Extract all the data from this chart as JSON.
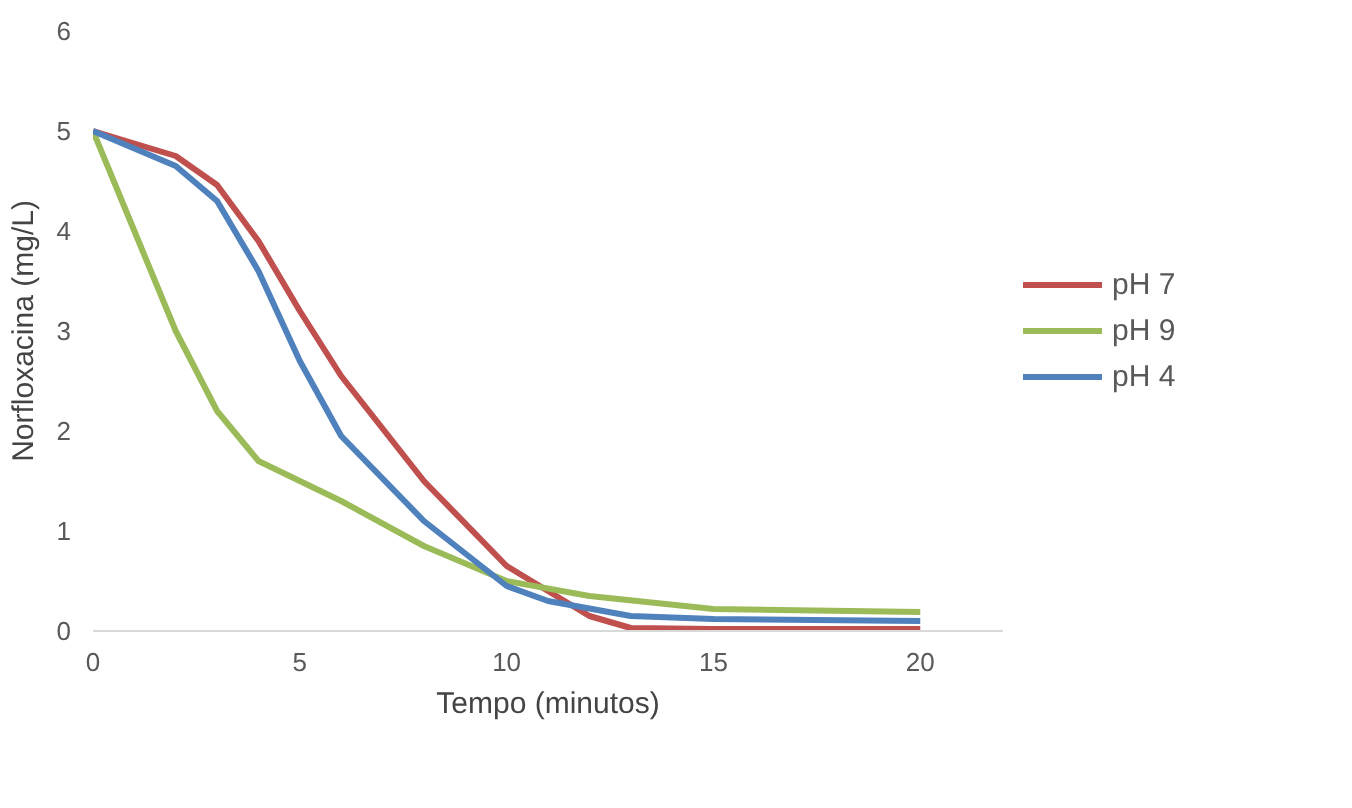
{
  "chart_data": {
    "type": "line",
    "xlabel": "Tempo (minutos)",
    "ylabel": "Norfloxacina (mg/L)",
    "xlim": [
      0,
      22
    ],
    "xticks": [
      0,
      5,
      10,
      15,
      20
    ],
    "ylim": [
      0,
      6
    ],
    "yticks": [
      0,
      1,
      2,
      3,
      4,
      5,
      6
    ],
    "grid": false,
    "legend": "right",
    "marker": "none",
    "line_style": "solid",
    "series": [
      {
        "name": "pH 7",
        "color": "#c0504d",
        "x": [
          0,
          2,
          3,
          4,
          5,
          6,
          8,
          10,
          12,
          13,
          15,
          20
        ],
        "values": [
          5,
          4.75,
          4.46,
          3.9,
          3.2,
          2.55,
          1.5,
          0.65,
          0.15,
          0.03,
          0.02,
          0.02
        ]
      },
      {
        "name": "pH 9",
        "color": "#9bbb59",
        "x": [
          0,
          1,
          2,
          3,
          4,
          5,
          6,
          8,
          10,
          12,
          15,
          20
        ],
        "values": [
          5,
          4.0,
          3.0,
          2.2,
          1.7,
          1.5,
          1.3,
          0.85,
          0.5,
          0.35,
          0.22,
          0.19
        ]
      },
      {
        "name": "pH 4",
        "color": "#4f81bd",
        "x": [
          0,
          2,
          3,
          4,
          5,
          6,
          8,
          10,
          11,
          13,
          15,
          20
        ],
        "values": [
          5,
          4.65,
          4.3,
          3.6,
          2.7,
          1.95,
          1.1,
          0.45,
          0.3,
          0.15,
          0.12,
          0.1
        ]
      }
    ]
  }
}
